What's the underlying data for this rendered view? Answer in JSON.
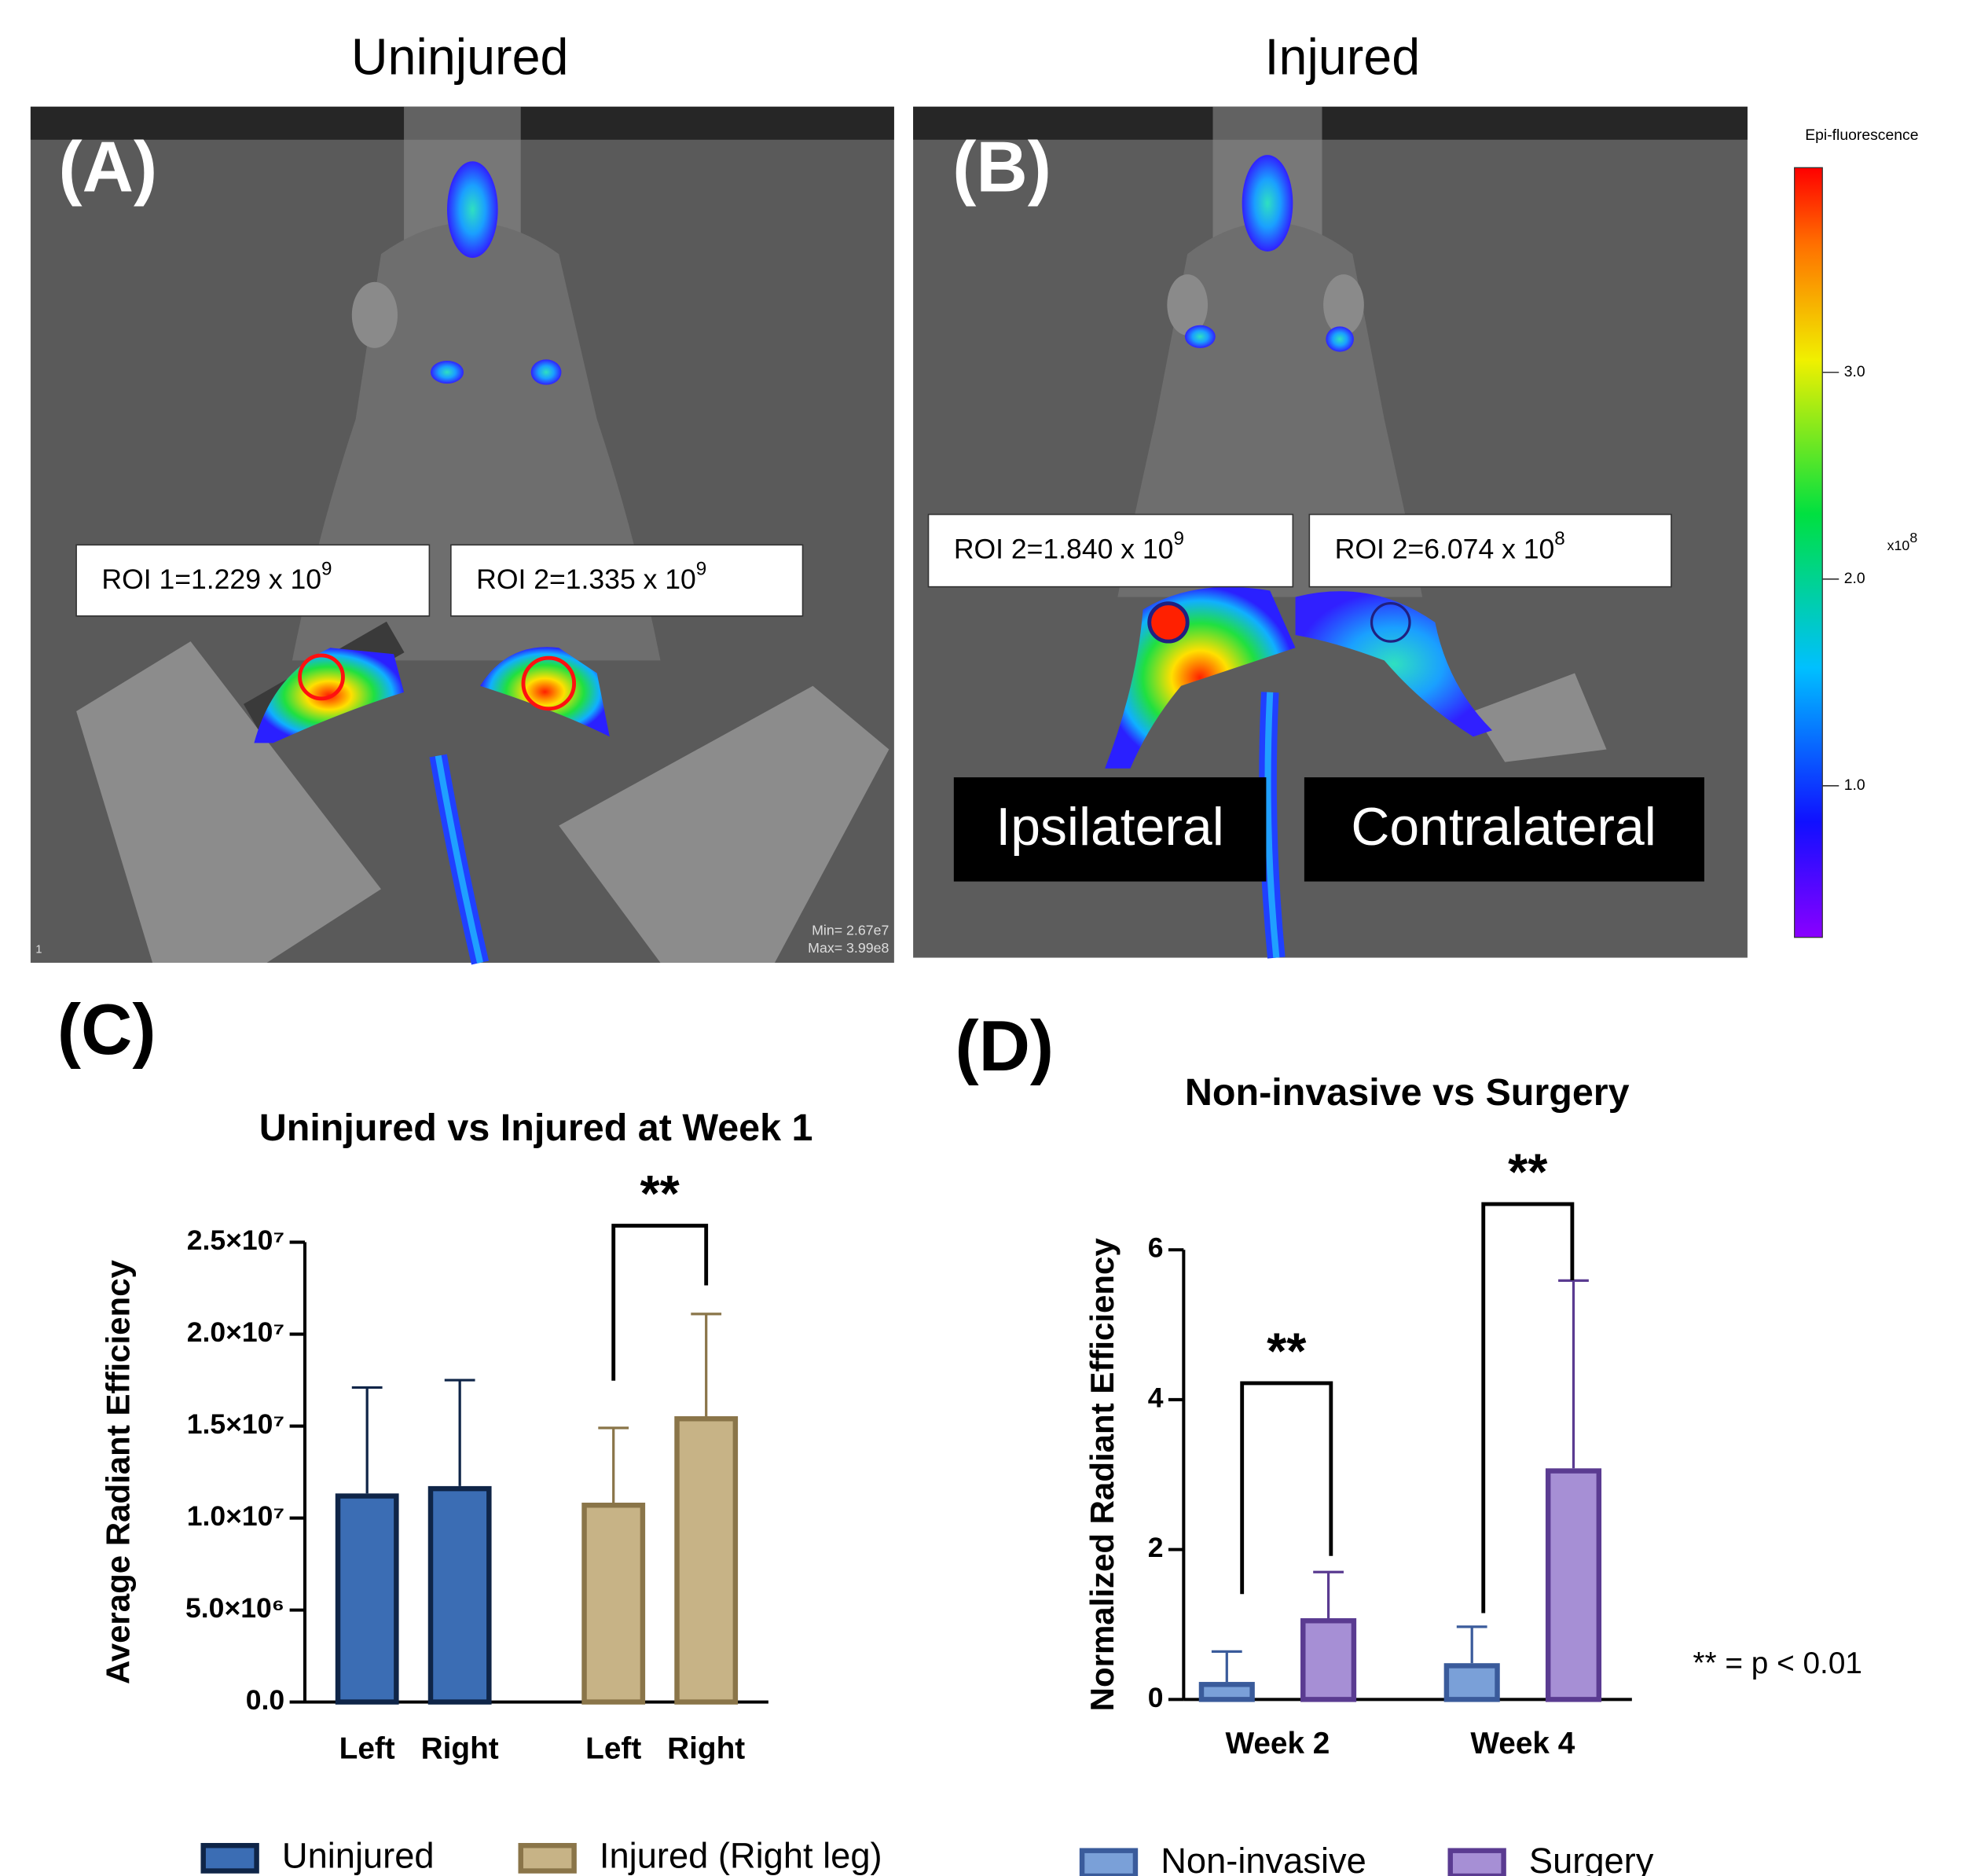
{
  "panels": [
    {
      "title": "Uninjured",
      "label": "(A)",
      "rois": [
        {
          "base": "ROI 1=1.229 x 10",
          "exp": "9"
        },
        {
          "base": "ROI 2=1.335 x 10",
          "exp": "9"
        }
      ],
      "corner": "1",
      "min_text": "Min= 2.67e7",
      "max_text": "Max= 3.99e8"
    },
    {
      "title": "Injured",
      "label": "(B)",
      "rois": [
        {
          "base": "ROI 2=1.840 x 10",
          "exp": "9"
        },
        {
          "base": "ROI 2=6.074 x 10",
          "exp": "8"
        }
      ],
      "sides": [
        "Ipsilateral",
        "Contralateral"
      ]
    }
  ],
  "colorbar": {
    "title": "Epi-fluorescence",
    "unit_base": "x10",
    "unit_exp": "8",
    "lim": [
      0.267,
      3.99
    ],
    "ticks": [
      {
        "value": 3.0,
        "label": "3.0"
      },
      {
        "value": 2.0,
        "label": "2.0"
      },
      {
        "value": 1.0,
        "label": "1.0"
      }
    ]
  },
  "chart_labels": [
    "(C)",
    "(D)"
  ],
  "footnote": "** = p < 0.01",
  "chart_data": [
    {
      "type": "bar",
      "title": "Uninjured vs Injured at Week 1",
      "ylabel": "Average Radiant Efficiency",
      "categories": [
        "Left",
        "Right",
        "Left",
        "Right"
      ],
      "series": [
        {
          "name": "Uninjured",
          "color": "#3b6db4",
          "edge": "#0f2548",
          "values": [
            11200000,
            11600000,
            null,
            null
          ],
          "errors": [
            5900000,
            5900000,
            null,
            null
          ]
        },
        {
          "name": "Injured (Right leg)",
          "color": "#c7b386",
          "edge": "#8a7549",
          "values": [
            null,
            null,
            10700000,
            15400000
          ],
          "errors": [
            null,
            null,
            4200000,
            5700000
          ]
        }
      ],
      "ylim": [
        0,
        25000000
      ],
      "yticks": [
        {
          "value": 0,
          "label": "0.0"
        },
        {
          "value": 5000000,
          "label": "5.0×10⁶"
        },
        {
          "value": 10000000,
          "label": "1.0×10⁷"
        },
        {
          "value": 15000000,
          "label": "1.5×10⁷"
        },
        {
          "value": 20000000,
          "label": "2.0×10⁷"
        },
        {
          "value": 25000000,
          "label": "2.5×10⁷"
        }
      ],
      "annotations": [
        "**"
      ]
    },
    {
      "type": "bar",
      "title": "Non-invasive vs Surgery",
      "ylabel": "Normalized Radiant Efficiency",
      "categories": [
        "Week 2",
        "Week 4"
      ],
      "series": [
        {
          "name": "Non-invasive",
          "color": "#7aa0d8",
          "edge": "#3a5b9b",
          "values": [
            0.2,
            0.45
          ],
          "errors": [
            0.44,
            0.52
          ]
        },
        {
          "name": "Surgery",
          "color": "#a68fd5",
          "edge": "#5a3b91",
          "values": [
            1.05,
            3.05
          ],
          "errors": [
            0.65,
            2.54
          ]
        }
      ],
      "ylim": [
        0,
        6
      ],
      "yticks": [
        0,
        2,
        4,
        6
      ],
      "annotations": [
        "**",
        "**"
      ]
    }
  ]
}
